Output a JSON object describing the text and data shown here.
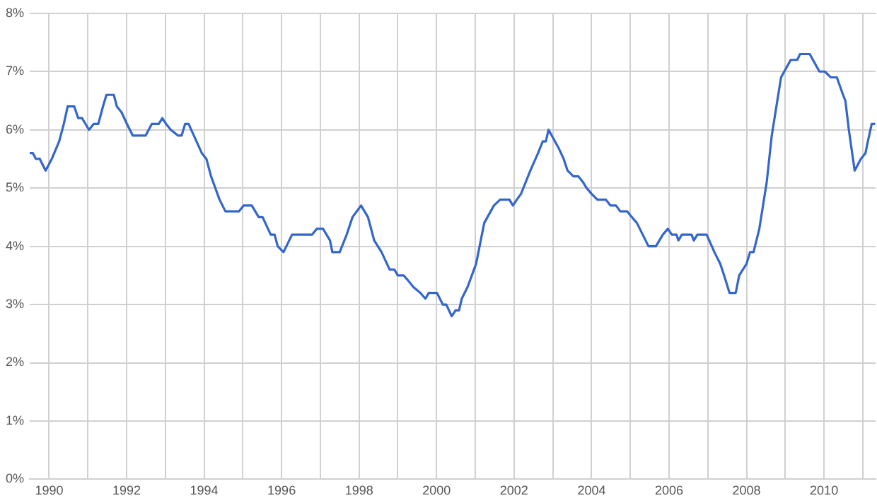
{
  "chart_data": {
    "type": "line",
    "color": "#3366cc",
    "grid": true,
    "marker": "none",
    "line_style": "solid",
    "xlim": [
      1989.5,
      2011.33
    ],
    "xticks": [
      1990,
      {
        "value": 1991,
        "label": null
      },
      1992,
      {
        "value": 1993,
        "label": null
      },
      1994,
      {
        "value": 1995,
        "label": null
      },
      1996,
      {
        "value": 1997,
        "label": null
      },
      1998,
      {
        "value": 1999,
        "label": null
      },
      2000,
      {
        "value": 2001,
        "label": null
      },
      2002,
      {
        "value": 2003,
        "label": null
      },
      2004,
      {
        "value": 2005,
        "label": null
      },
      2006,
      {
        "value": 2007,
        "label": null
      },
      2008,
      {
        "value": 2009,
        "label": null
      },
      2010,
      {
        "value": 2011,
        "label": null
      }
    ],
    "ylim": [
      0,
      8
    ],
    "yticks": [
      {
        "value": 0,
        "label": "0%"
      },
      {
        "value": 1,
        "label": "1%"
      },
      {
        "value": 2,
        "label": "2%"
      },
      {
        "value": 3,
        "label": "3%"
      },
      {
        "value": 4,
        "label": "4%"
      },
      {
        "value": 5,
        "label": "5%"
      },
      {
        "value": 6,
        "label": "6%"
      },
      {
        "value": 7,
        "label": "7%"
      },
      {
        "value": 8,
        "label": "8%"
      }
    ],
    "x": [
      1989.5,
      1989.58,
      1989.66,
      1989.76,
      1989.91,
      1990.07,
      1990.26,
      1990.38,
      1990.48,
      1990.65,
      1990.75,
      1990.85,
      1991.03,
      1991.15,
      1991.27,
      1991.39,
      1991.48,
      1991.67,
      1991.75,
      1991.87,
      1992.01,
      1992.16,
      1992.49,
      1992.65,
      1992.83,
      1992.92,
      1993.02,
      1993.14,
      1993.33,
      1993.42,
      1993.51,
      1993.6,
      1993.94,
      1994.06,
      1994.18,
      1994.4,
      1994.55,
      1994.9,
      1995.02,
      1995.23,
      1995.41,
      1995.51,
      1995.72,
      1995.82,
      1995.9,
      1996.05,
      1996.27,
      1996.79,
      1996.91,
      1997.07,
      1997.25,
      1997.31,
      1997.5,
      1997.68,
      1997.83,
      1998.05,
      1998.23,
      1998.39,
      1998.58,
      1998.79,
      1998.91,
      1999.0,
      1999.15,
      1999.28,
      1999.4,
      1999.58,
      1999.71,
      1999.8,
      2000.01,
      2000.16,
      2000.25,
      2000.39,
      2000.49,
      2000.58,
      2000.65,
      2000.8,
      2001.02,
      2001.23,
      2001.48,
      2001.64,
      2001.88,
      2001.97,
      2002.07,
      2002.18,
      2002.42,
      2002.62,
      2002.74,
      2002.82,
      2002.89,
      2003.14,
      2003.28,
      2003.38,
      2003.53,
      2003.66,
      2003.78,
      2003.87,
      2004.0,
      2004.15,
      2004.37,
      2004.49,
      2004.63,
      2004.74,
      2004.92,
      2005.04,
      2005.17,
      2005.47,
      2005.66,
      2005.84,
      2005.97,
      2006.07,
      2006.19,
      2006.24,
      2006.33,
      2006.58,
      2006.64,
      2006.73,
      2006.97,
      2007.17,
      2007.32,
      2007.42,
      2007.56,
      2007.72,
      2007.81,
      2008.0,
      2008.09,
      2008.18,
      2008.33,
      2008.52,
      2008.65,
      2008.77,
      2008.89,
      2009.14,
      2009.31,
      2009.38,
      2009.63,
      2009.88,
      2010.02,
      2010.17,
      2010.33,
      2010.49,
      2010.55,
      2010.64,
      2010.79,
      2010.95,
      2011.07,
      2011.13,
      2011.23,
      2011.32
    ],
    "values": [
      5.6,
      5.6,
      5.5,
      5.5,
      5.3,
      5.5,
      5.8,
      6.1,
      6.4,
      6.4,
      6.2,
      6.2,
      6.0,
      6.1,
      6.1,
      6.4,
      6.6,
      6.6,
      6.4,
      6.3,
      6.1,
      5.9,
      5.9,
      6.1,
      6.1,
      6.2,
      6.1,
      6.0,
      5.9,
      5.9,
      6.1,
      6.1,
      5.6,
      5.5,
      5.2,
      4.8,
      4.6,
      4.6,
      4.7,
      4.7,
      4.5,
      4.5,
      4.2,
      4.2,
      4.0,
      3.9,
      4.2,
      4.2,
      4.3,
      4.3,
      4.1,
      3.9,
      3.9,
      4.2,
      4.5,
      4.7,
      4.5,
      4.1,
      3.9,
      3.6,
      3.6,
      3.5,
      3.5,
      3.4,
      3.3,
      3.2,
      3.1,
      3.2,
      3.2,
      3.0,
      3.0,
      2.8,
      2.9,
      2.9,
      3.1,
      3.3,
      3.7,
      4.4,
      4.7,
      4.8,
      4.8,
      4.7,
      4.8,
      4.9,
      5.3,
      5.6,
      5.8,
      5.8,
      6.0,
      5.7,
      5.5,
      5.3,
      5.2,
      5.2,
      5.1,
      5.0,
      4.9,
      4.8,
      4.8,
      4.7,
      4.7,
      4.6,
      4.6,
      4.5,
      4.4,
      4.0,
      4.0,
      4.2,
      4.3,
      4.2,
      4.2,
      4.1,
      4.2,
      4.2,
      4.1,
      4.2,
      4.2,
      3.9,
      3.7,
      3.5,
      3.2,
      3.2,
      3.5,
      3.7,
      3.9,
      3.9,
      4.3,
      5.1,
      5.9,
      6.4,
      6.9,
      7.2,
      7.2,
      7.3,
      7.3,
      7.0,
      7.0,
      6.9,
      6.9,
      6.6,
      6.5,
      6.0,
      5.3,
      5.5,
      5.6,
      5.8,
      6.1,
      6.1
    ]
  }
}
